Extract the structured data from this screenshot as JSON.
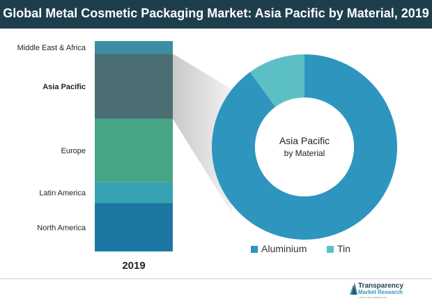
{
  "header": {
    "title": "Global Metal Cosmetic Packaging Market: Asia Pacific by Material, 2019"
  },
  "chart_data": [
    {
      "type": "bar",
      "subtype": "stacked-100",
      "categories": [
        "2019"
      ],
      "series": [
        {
          "name": "North America",
          "value": 23
        },
        {
          "name": "Latin America",
          "value": 10
        },
        {
          "name": "Europe",
          "value": 30
        },
        {
          "name": "Asia Pacific",
          "value": 31
        },
        {
          "name": "Middle East & Africa",
          "value": 6
        }
      ],
      "highlighted": "Asia Pacific",
      "colors": [
        "#1c78a2",
        "#35a3b4",
        "#46a584",
        "#4b6e74",
        "#3b8ea1"
      ],
      "xlabel": "2019"
    },
    {
      "type": "pie",
      "subtype": "donut",
      "center_label": [
        "Asia Pacific",
        "by Material"
      ],
      "slices": [
        {
          "name": "Aluminium",
          "value": 90,
          "color": "#2e95be"
        },
        {
          "name": "Tin",
          "value": 10,
          "color": "#5dbfc6"
        }
      ],
      "legend_position": "bottom"
    }
  ],
  "logo": {
    "line1": "Transparency",
    "line2": "Market Research",
    "tagline": "a global market intelligence firm"
  }
}
